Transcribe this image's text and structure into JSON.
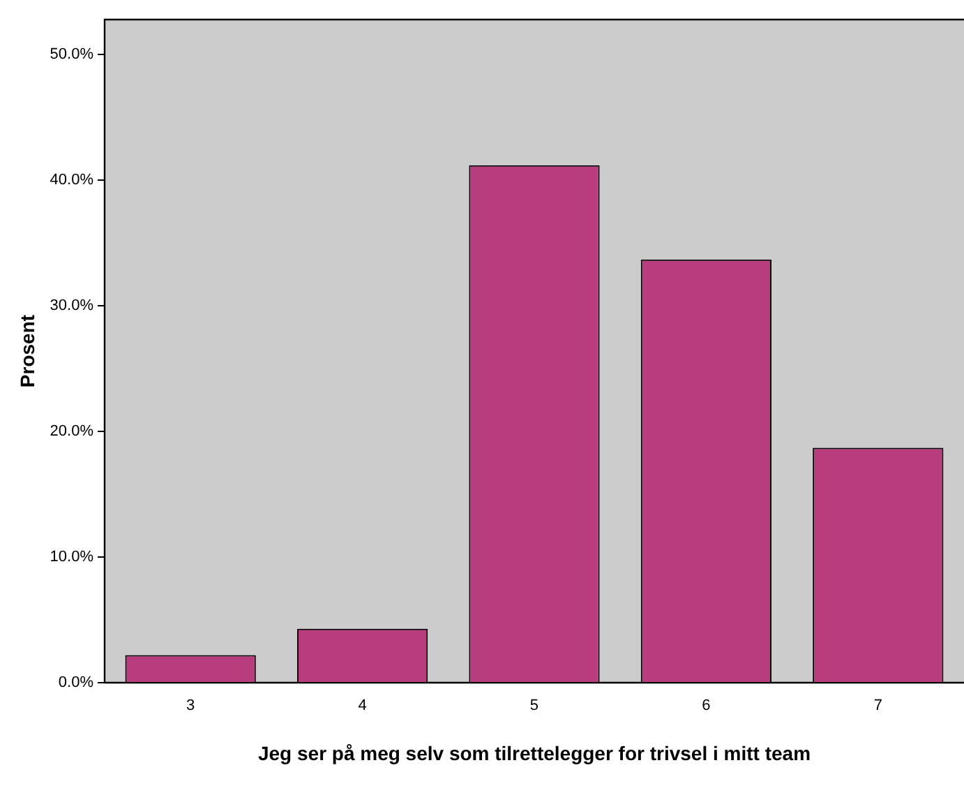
{
  "chart_data": {
    "type": "bar",
    "xlabel": "Jeg ser på meg selv som tilrettelegger for trivsel i mitt team",
    "ylabel": "Prosent",
    "categories": [
      "3",
      "4",
      "5",
      "6",
      "7"
    ],
    "values": [
      2.2,
      4.3,
      41.2,
      33.7,
      18.7
    ],
    "color": "#b93d7e",
    "ylim": [
      0,
      52.8
    ],
    "yticks": [
      {
        "value": 0,
        "label": "0.0%"
      },
      {
        "value": 10,
        "label": "10.0%"
      },
      {
        "value": 20,
        "label": "20.0%"
      },
      {
        "value": 30,
        "label": "30.0%"
      },
      {
        "value": 40,
        "label": "40.0%"
      },
      {
        "value": 50,
        "label": "50.0%"
      }
    ],
    "grid": false,
    "legend": false
  }
}
